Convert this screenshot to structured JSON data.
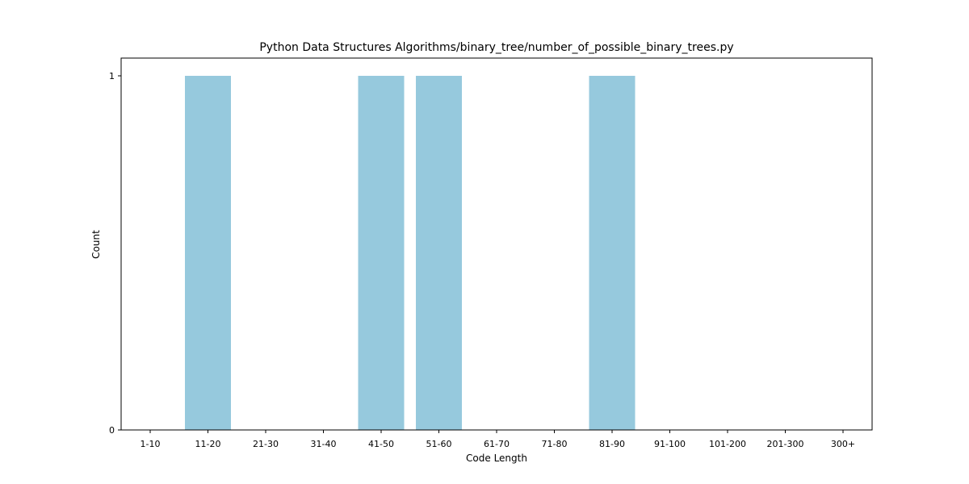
{
  "chart_data": {
    "type": "bar",
    "title": "Python Data Structures Algorithms/binary_tree/number_of_possible_binary_trees.py",
    "xlabel": "Code Length",
    "ylabel": "Count",
    "categories": [
      "1-10",
      "11-20",
      "21-30",
      "31-40",
      "41-50",
      "51-60",
      "61-70",
      "71-80",
      "81-90",
      "91-100",
      "101-200",
      "201-300",
      "300+"
    ],
    "values": [
      0,
      1,
      0,
      0,
      1,
      1,
      0,
      0,
      1,
      0,
      0,
      0,
      0
    ],
    "ylim": [
      0,
      1
    ],
    "yticks": [
      0,
      1
    ],
    "bar_color": "#96c9dd",
    "grid": false,
    "legend": "none"
  }
}
